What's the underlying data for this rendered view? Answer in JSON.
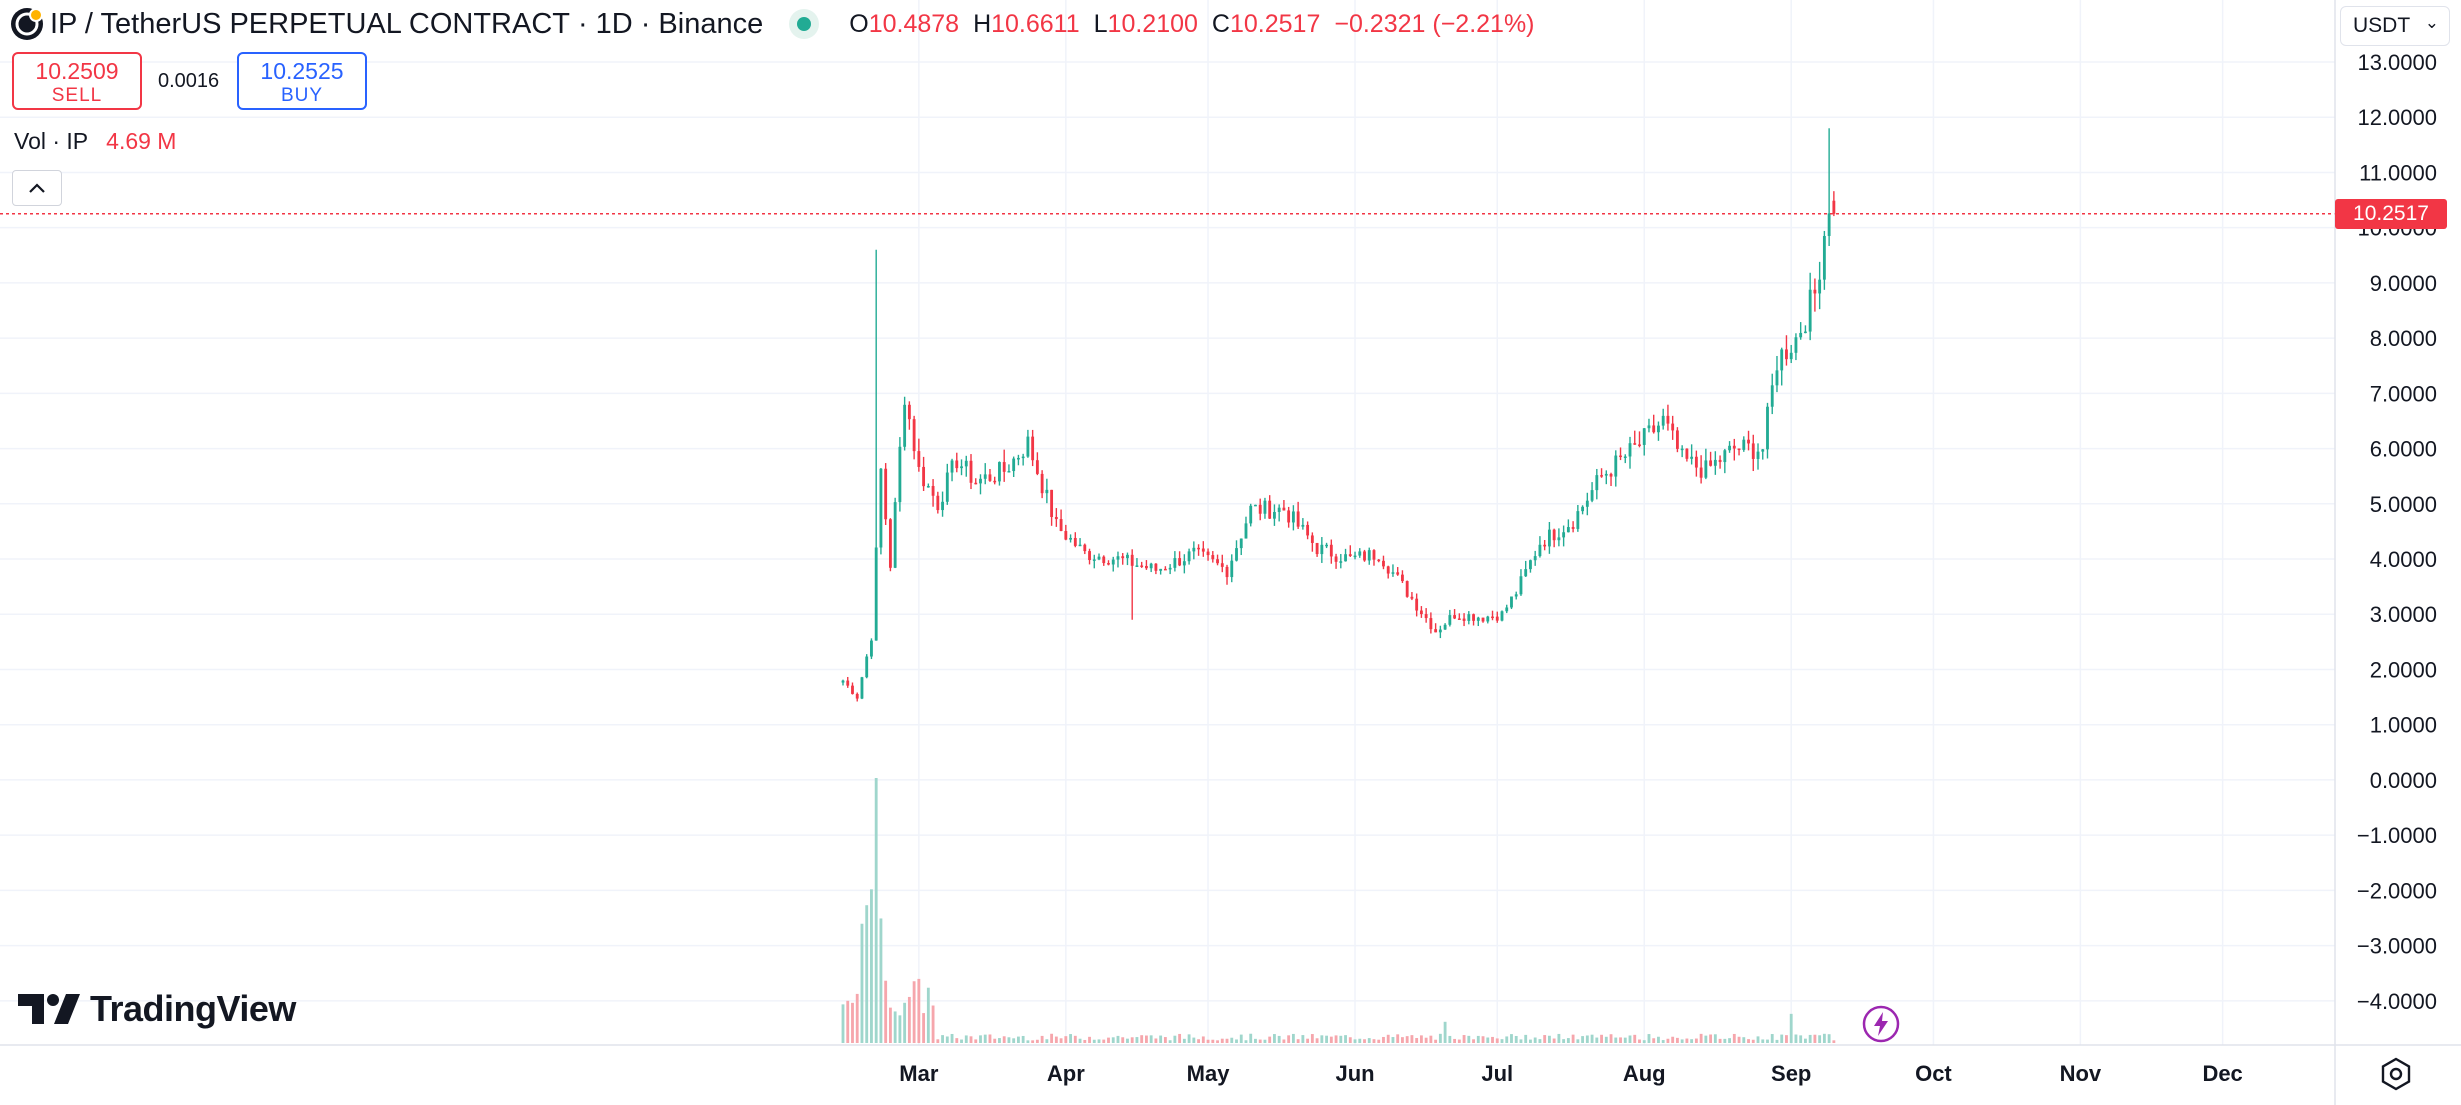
{
  "header": {
    "symbol_title": "IP / TetherUS PERPETUAL CONTRACT",
    "interval": "1D",
    "exchange": "Binance",
    "separator": "·",
    "ohlc": {
      "o_label": "O",
      "o": "10.4878",
      "h_label": "H",
      "h": "10.6611",
      "l_label": "L",
      "l": "10.2100",
      "c_label": "C",
      "c": "10.2517",
      "change": "−0.2321 (−2.21%)"
    }
  },
  "trade": {
    "sell_price": "10.2509",
    "sell_label": "SELL",
    "spread": "0.0016",
    "buy_price": "10.2525",
    "buy_label": "BUY"
  },
  "volume_legend": {
    "label": "Vol · IP",
    "value": "4.69 M"
  },
  "currency": {
    "selected": "USDT"
  },
  "last_price_label": "10.2517",
  "branding": {
    "logo_text": "TradingView"
  },
  "icons": {
    "collapse": "chevron-up-icon",
    "currency_dropdown": "chevron-down-icon",
    "settings": "settings-icon",
    "flash": "lightning-icon",
    "symbol": "ip-coin-icon"
  },
  "colors": {
    "up": "#22ab94",
    "down": "#f23645",
    "up_volume": "#9fd6cc",
    "down_volume": "#f6a6ac",
    "grid": "#f0f3fa",
    "last_price_line": "#f23645"
  },
  "chart_data": {
    "type": "candlestick",
    "interval": "1D",
    "currency": "USDT",
    "last_price": 10.2517,
    "ylim": [
      -4.8,
      13.0
    ],
    "y_ticks": [
      "13.0000",
      "12.0000",
      "11.0000",
      "10.0000",
      "9.0000",
      "8.0000",
      "7.0000",
      "6.0000",
      "5.0000",
      "4.0000",
      "3.0000",
      "2.0000",
      "1.0000",
      "0.0000",
      "−1.0000",
      "−2.0000",
      "−3.0000",
      "−4.0000"
    ],
    "x_tick_labels": [
      "Mar",
      "Apr",
      "May",
      "Jun",
      "Jul",
      "Aug",
      "Sep",
      "Oct",
      "Nov",
      "Dec"
    ],
    "x_range": [
      "2025-02-13",
      "2025-12-15"
    ],
    "series_start": "2025-02-13",
    "close_path": [
      [
        "2025-02-13",
        1.8
      ],
      [
        "2025-02-16",
        1.5
      ],
      [
        "2025-02-19",
        2.6
      ],
      [
        "2025-02-21",
        5.6
      ],
      [
        "2025-02-23",
        3.9
      ],
      [
        "2025-02-26",
        7.0
      ],
      [
        "2025-03-01",
        5.6
      ],
      [
        "2025-03-05",
        5.0
      ],
      [
        "2025-03-09",
        5.8
      ],
      [
        "2025-03-13",
        5.4
      ],
      [
        "2025-03-19",
        5.6
      ],
      [
        "2025-03-24",
        6.1
      ],
      [
        "2025-03-30",
        4.6
      ],
      [
        "2025-04-05",
        4.1
      ],
      [
        "2025-04-12",
        4.0
      ],
      [
        "2025-04-20",
        3.8
      ],
      [
        "2025-04-28",
        4.1
      ],
      [
        "2025-05-05",
        3.8
      ],
      [
        "2025-05-10",
        4.9
      ],
      [
        "2025-05-17",
        4.9
      ],
      [
        "2025-05-24",
        4.2
      ],
      [
        "2025-05-31",
        4.0
      ],
      [
        "2025-06-06",
        4.1
      ],
      [
        "2025-06-12",
        3.4
      ],
      [
        "2025-06-18",
        2.7
      ],
      [
        "2025-06-22",
        3.0
      ],
      [
        "2025-06-28",
        2.95
      ],
      [
        "2025-07-02",
        3.0
      ],
      [
        "2025-07-05",
        3.4
      ],
      [
        "2025-07-10",
        4.3
      ],
      [
        "2025-07-17",
        4.7
      ],
      [
        "2025-07-23",
        5.5
      ],
      [
        "2025-07-30",
        6.0
      ],
      [
        "2025-08-05",
        6.5
      ],
      [
        "2025-08-09",
        5.8
      ],
      [
        "2025-08-14",
        5.6
      ],
      [
        "2025-08-20",
        6.0
      ],
      [
        "2025-08-26",
        6.0
      ],
      [
        "2025-08-29",
        7.6
      ],
      [
        "2025-09-02",
        8.0
      ],
      [
        "2025-09-06",
        8.8
      ],
      [
        "2025-09-09",
        10.49
      ],
      [
        "2025-09-10",
        10.2517
      ]
    ],
    "spikes": [
      {
        "date": "2025-02-20",
        "high": 9.6
      },
      {
        "date": "2025-04-15",
        "low": 2.9
      },
      {
        "date": "2025-09-09",
        "high": 11.8
      }
    ],
    "volume_peaks": [
      {
        "date": "2025-02-20",
        "relative": 1.0
      },
      {
        "date": "2025-02-19",
        "relative": 0.58
      },
      {
        "date": "2025-02-18",
        "relative": 0.52
      },
      {
        "date": "2025-02-17",
        "relative": 0.45
      },
      {
        "date": "2025-02-21",
        "relative": 0.47
      },
      {
        "date": "2025-06-20",
        "relative": 0.08
      },
      {
        "date": "2025-09-01",
        "relative": 0.11
      }
    ],
    "last_bar": {
      "date": "2025-09-10",
      "open": 10.4878,
      "high": 10.6611,
      "low": 10.21,
      "close": 10.2517
    },
    "volume_last": "4.69 M",
    "grid": true
  }
}
